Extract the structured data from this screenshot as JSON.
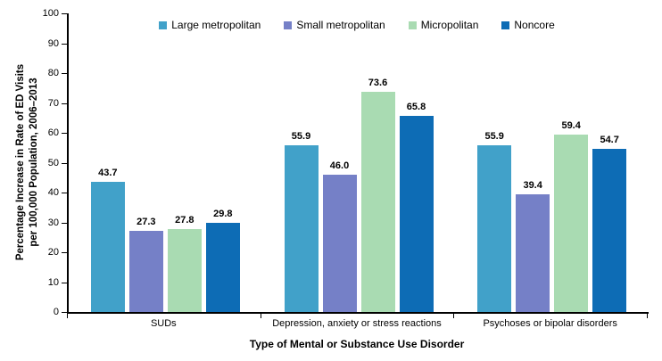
{
  "chart_data": {
    "type": "bar",
    "title": "",
    "categories": [
      "SUDs",
      "Depression, anxiety or stress reactions",
      "Psychoses or bipolar disorders"
    ],
    "series": [
      {
        "name": "Large metropolitan",
        "color": "#41A1C9",
        "values": [
          43.7,
          55.9,
          55.9
        ]
      },
      {
        "name": "Small metropolitan",
        "color": "#7580C7",
        "values": [
          27.3,
          46.0,
          39.4
        ]
      },
      {
        "name": "Micropolitan",
        "color": "#A9DBB2",
        "values": [
          27.8,
          73.6,
          59.4
        ]
      },
      {
        "name": "Noncore",
        "color": "#0D6CB5",
        "values": [
          29.8,
          65.8,
          54.7
        ]
      }
    ],
    "xlabel": "Type of Mental or Substance Use Disorder",
    "ylabel_line1": "Percentage Increase in Rate of ED Visits",
    "ylabel_line2": "per 100,000 Population, 2006–2013",
    "ylim": [
      0,
      100
    ],
    "ytick_step": 10,
    "grid": false,
    "legend_position": "top",
    "value_label_decimals": 1,
    "axis_color": "#000000",
    "text_color": "#000000"
  }
}
